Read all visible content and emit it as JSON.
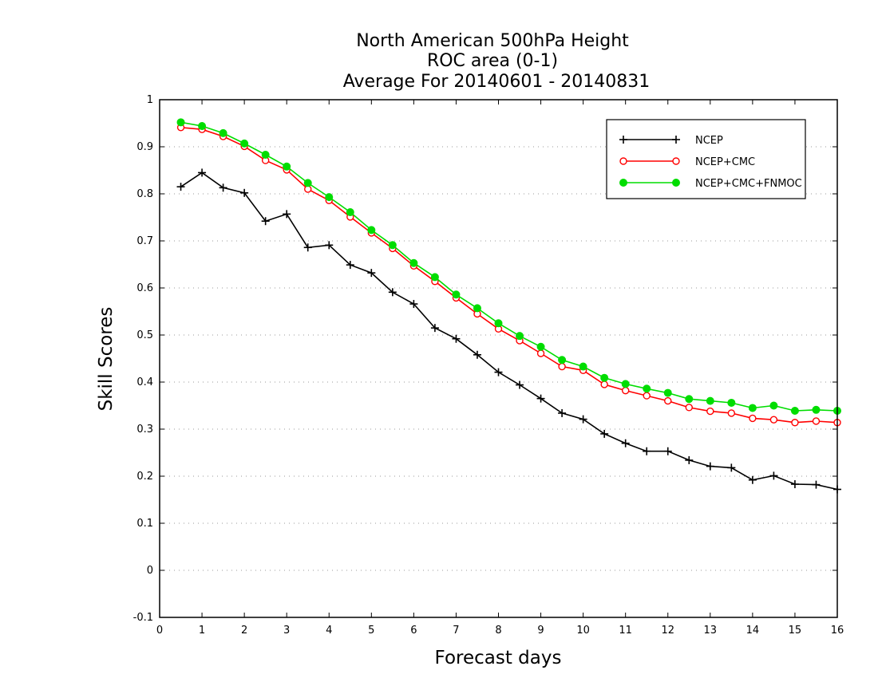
{
  "chart_data": {
    "type": "line",
    "title": [
      "North American 500hPa Height",
      "ROC area (0-1)",
      "Average For 20140601 - 20140831"
    ],
    "xlabel": "Forecast days",
    "ylabel": "Skill Scores",
    "xlim": [
      0,
      16
    ],
    "ylim": [
      -0.1,
      1
    ],
    "xticks": [
      "0",
      "1",
      "2",
      "3",
      "4",
      "5",
      "6",
      "7",
      "8",
      "9",
      "10",
      "11",
      "12",
      "13",
      "14",
      "15",
      "16"
    ],
    "yticks": [
      "-0.1",
      "0",
      "0.1",
      "0.2",
      "0.3",
      "0.4",
      "0.5",
      "0.6",
      "0.7",
      "0.8",
      "0.9",
      "1"
    ],
    "grid": "horizontal dotted",
    "legend_position": "top-right",
    "x": [
      0.5,
      1,
      1.5,
      2,
      2.5,
      3,
      3.5,
      4,
      4.5,
      5,
      5.5,
      6,
      6.5,
      7,
      7.5,
      8,
      8.5,
      9,
      9.5,
      10,
      10.5,
      11,
      11.5,
      12,
      12.5,
      13,
      13.5,
      14,
      14.5,
      15,
      15.5,
      16
    ],
    "series": [
      {
        "name": "NCEP",
        "color": "#000000",
        "marker": "plus",
        "values": [
          0.815,
          0.845,
          0.813,
          0.802,
          0.742,
          0.757,
          0.686,
          0.691,
          0.649,
          0.632,
          0.591,
          0.566,
          0.515,
          0.492,
          0.458,
          0.421,
          0.394,
          0.365,
          0.334,
          0.321,
          0.29,
          0.27,
          0.253,
          0.253,
          0.234,
          0.221,
          0.218,
          0.192,
          0.201,
          0.183,
          0.182,
          0.172
        ]
      },
      {
        "name": "NCEP+CMC",
        "color": "#ff0000",
        "marker": "open-circle",
        "values": [
          0.941,
          0.937,
          0.922,
          0.901,
          0.871,
          0.851,
          0.81,
          0.786,
          0.751,
          0.717,
          0.684,
          0.647,
          0.614,
          0.579,
          0.545,
          0.513,
          0.488,
          0.461,
          0.433,
          0.425,
          0.395,
          0.382,
          0.371,
          0.36,
          0.346,
          0.338,
          0.334,
          0.323,
          0.32,
          0.314,
          0.317,
          0.314
        ]
      },
      {
        "name": "NCEP+CMC+FNMOC",
        "color": "#00dd00",
        "marker": "filled-circle",
        "values": [
          0.952,
          0.944,
          0.929,
          0.907,
          0.883,
          0.858,
          0.823,
          0.793,
          0.761,
          0.723,
          0.691,
          0.653,
          0.623,
          0.586,
          0.557,
          0.525,
          0.498,
          0.475,
          0.447,
          0.433,
          0.409,
          0.396,
          0.386,
          0.377,
          0.364,
          0.36,
          0.356,
          0.345,
          0.35,
          0.339,
          0.341,
          0.339
        ]
      }
    ]
  }
}
